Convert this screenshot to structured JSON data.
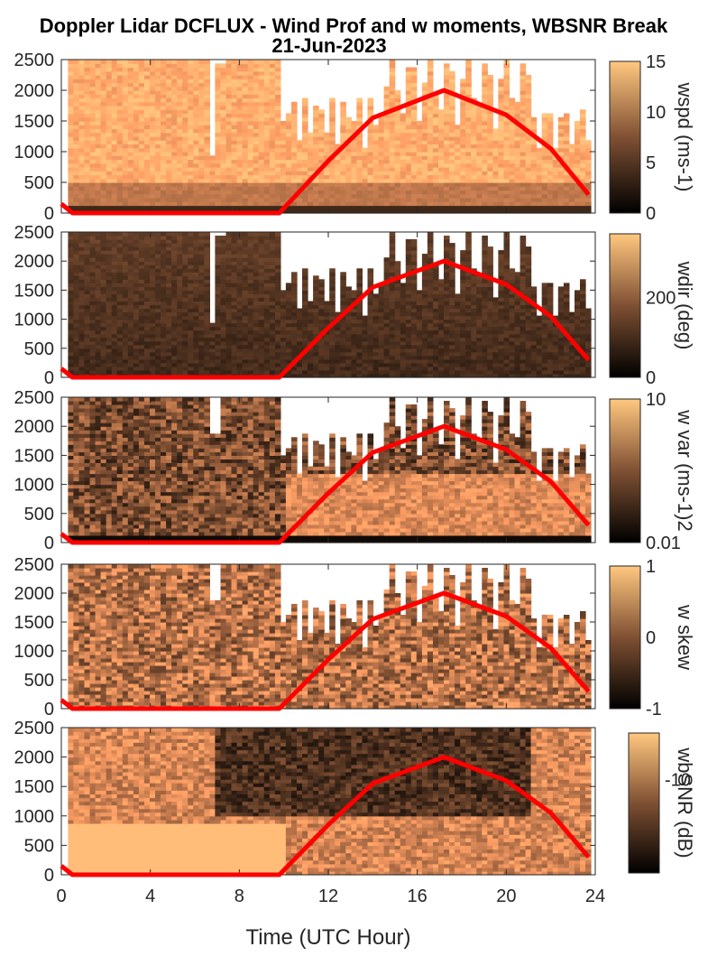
{
  "title_line1": "Doppler Lidar DCFLUX - Wind Prof and w moments, WBSNR Break",
  "title_line2": "21-Jun-2023",
  "xlabel": "Time (UTC Hour)",
  "x_ticks": [
    "0",
    "4",
    "8",
    "12",
    "16",
    "20",
    "24"
  ],
  "y_ticks": [
    "0",
    "500",
    "1000",
    "1500",
    "2000",
    "2500"
  ],
  "colors": {
    "colormap": "copper",
    "overlay_line": "#ff0000",
    "axis": "#262626",
    "background": "#ffffff"
  },
  "chart_data": [
    {
      "type": "heatmap",
      "title": "",
      "ylabel": "",
      "xlabel": "",
      "xlim": [
        0,
        24
      ],
      "ylim": [
        0,
        2500
      ],
      "colorbar_label": "wspd (ms-1)",
      "colorbar_ticks": [
        "0",
        "5",
        "10",
        "15"
      ],
      "colorbar_range": [
        0,
        15
      ],
      "description_values": "wind speed mostly 8-15 m/s aloft, low near surface",
      "overlay_line": [
        [
          0,
          150
        ],
        [
          0.5,
          0
        ],
        [
          9.8,
          0
        ],
        [
          12,
          850
        ],
        [
          14,
          1550
        ],
        [
          17.2,
          2000
        ],
        [
          20,
          1600
        ],
        [
          22,
          1050
        ],
        [
          23.7,
          300
        ]
      ]
    },
    {
      "type": "heatmap",
      "xlim": [
        0,
        24
      ],
      "ylim": [
        0,
        2500
      ],
      "colorbar_label": "wdir (deg)",
      "colorbar_ticks": [
        "0",
        "200"
      ],
      "colorbar_range": [
        0,
        360
      ],
      "overlay_line": [
        [
          0,
          150
        ],
        [
          0.5,
          0
        ],
        [
          9.8,
          0
        ],
        [
          12,
          850
        ],
        [
          14,
          1550
        ],
        [
          17.2,
          2000
        ],
        [
          20,
          1600
        ],
        [
          22,
          1050
        ],
        [
          23.7,
          300
        ]
      ]
    },
    {
      "type": "heatmap",
      "xlim": [
        0,
        24
      ],
      "ylim": [
        0,
        2500
      ],
      "colorbar_label": "w var (ms-1)2",
      "colorbar_ticks": [
        "0.01",
        "10"
      ],
      "colorbar_range": [
        0.01,
        10
      ],
      "colorbar_log": true,
      "overlay_line": [
        [
          0,
          150
        ],
        [
          0.5,
          0
        ],
        [
          9.8,
          0
        ],
        [
          12,
          850
        ],
        [
          14,
          1550
        ],
        [
          17.2,
          2000
        ],
        [
          20,
          1600
        ],
        [
          22,
          1050
        ],
        [
          23.7,
          300
        ]
      ]
    },
    {
      "type": "heatmap",
      "xlim": [
        0,
        24
      ],
      "ylim": [
        0,
        2500
      ],
      "colorbar_label": "w skew",
      "colorbar_ticks": [
        "-1",
        "0",
        "1"
      ],
      "colorbar_range": [
        -1,
        1
      ],
      "overlay_line": [
        [
          0,
          150
        ],
        [
          0.5,
          0
        ],
        [
          9.8,
          0
        ],
        [
          12,
          850
        ],
        [
          14,
          1550
        ],
        [
          17.2,
          2000
        ],
        [
          20,
          1600
        ],
        [
          22,
          1050
        ],
        [
          23.7,
          300
        ]
      ]
    },
    {
      "type": "heatmap",
      "xlim": [
        0,
        24
      ],
      "ylim": [
        0,
        2500
      ],
      "colorbar_label": "wbSNR (dB)",
      "colorbar_ticks": [
        "-10"
      ],
      "colorbar_range": [
        -30,
        0
      ],
      "overlay_line": [
        [
          0,
          150
        ],
        [
          0.5,
          0
        ],
        [
          9.8,
          0
        ],
        [
          12,
          850
        ],
        [
          14,
          1550
        ],
        [
          17.2,
          2000
        ],
        [
          20,
          1600
        ],
        [
          22,
          1050
        ],
        [
          23.7,
          300
        ]
      ]
    }
  ]
}
